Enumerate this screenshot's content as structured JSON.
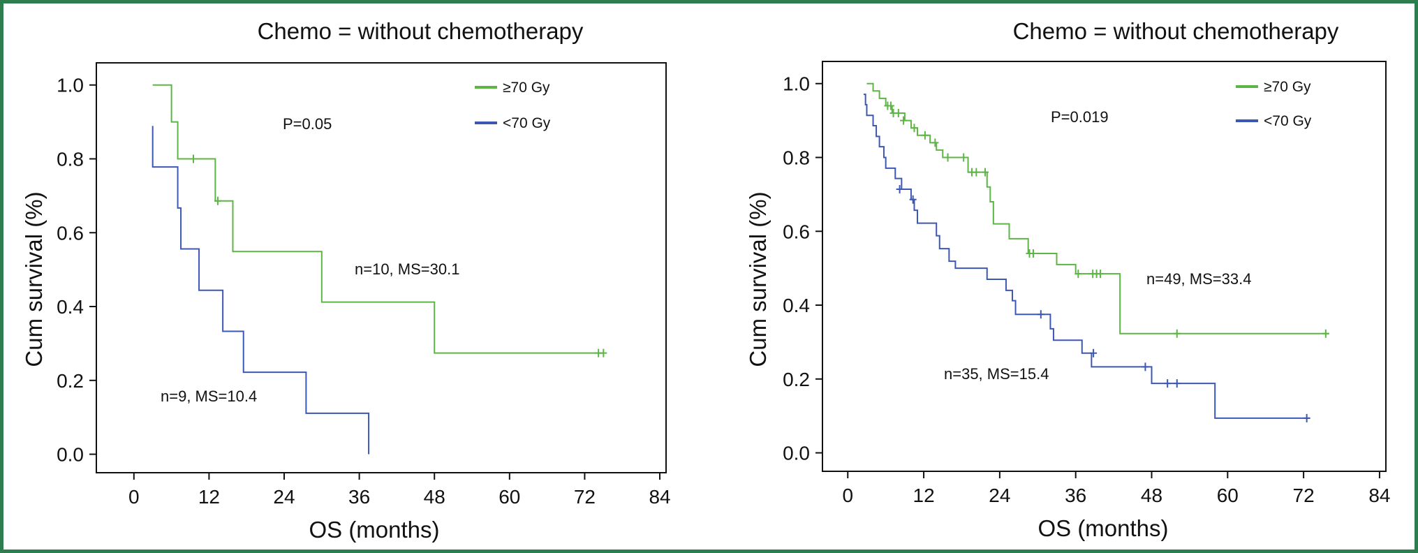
{
  "colors": {
    "frame": "#2e7d4f",
    "high_dose": "#5cb544",
    "low_dose": "#3d57b5"
  },
  "chart_data": [
    {
      "type": "line",
      "subtype": "kaplan-meier step",
      "title": "Chemo = without chemotherapy",
      "xlabel": "OS (months)",
      "ylabel": "Cum survival (%)",
      "xlim": [
        -6,
        85
      ],
      "ylim": [
        -0.05,
        1.06
      ],
      "xticks": [
        0,
        12,
        24,
        36,
        48,
        60,
        72,
        84
      ],
      "yticks": [
        "0.0",
        "0.2",
        "0.4",
        "0.6",
        "0.8",
        "1.0"
      ],
      "grid": false,
      "legend_position": "top-right",
      "pvalue": "P=0.05",
      "series": [
        {
          "name": "≥70 Gy",
          "label": "n=10, MS=30.1",
          "steps": [
            [
              3,
              1.0
            ],
            [
              6,
              0.9
            ],
            [
              7,
              0.8
            ],
            [
              13,
              0.686
            ],
            [
              15.8,
              0.549
            ],
            [
              30,
              0.412
            ],
            [
              48,
              0.274
            ],
            [
              75,
              0.274
            ]
          ],
          "censors": [
            [
              9.5,
              0.8
            ],
            [
              13.4,
              0.686
            ],
            [
              74.2,
              0.274
            ],
            [
              75,
              0.274
            ]
          ]
        },
        {
          "name": "<70 Gy",
          "label": "n=9, MS=10.4",
          "steps": [
            [
              3,
              0.889
            ],
            [
              3,
              0.778
            ],
            [
              7,
              0.667
            ],
            [
              7.5,
              0.556
            ],
            [
              10.4,
              0.444
            ],
            [
              14.2,
              0.333
            ],
            [
              17.5,
              0.222
            ],
            [
              27.5,
              0.111
            ],
            [
              37.5,
              0.0
            ]
          ],
          "censors": []
        }
      ]
    },
    {
      "type": "line",
      "subtype": "kaplan-meier step",
      "title": "Chemo = without chemotherapy",
      "xlabel": "OS (months)",
      "ylabel": "Cum survival (%)",
      "xlim": [
        -4,
        85
      ],
      "ylim": [
        -0.05,
        1.06
      ],
      "xticks": [
        0,
        12,
        24,
        36,
        48,
        60,
        72,
        84
      ],
      "yticks": [
        "0.0",
        "0.2",
        "0.4",
        "0.6",
        "0.8",
        "1.0"
      ],
      "grid": false,
      "legend_position": "top-right",
      "pvalue": "P=0.019",
      "series": [
        {
          "name": "≥70 Gy",
          "label": "n=49, MS=33.4",
          "steps": [
            [
              3,
              1.0
            ],
            [
              4,
              0.98
            ],
            [
              5,
              0.96
            ],
            [
              6,
              0.94
            ],
            [
              7,
              0.92
            ],
            [
              9,
              0.9
            ],
            [
              10,
              0.88
            ],
            [
              11,
              0.86
            ],
            [
              13,
              0.84
            ],
            [
              14,
              0.82
            ],
            [
              15,
              0.8
            ],
            [
              19,
              0.76
            ],
            [
              22,
              0.72
            ],
            [
              22.5,
              0.68
            ],
            [
              23,
              0.62
            ],
            [
              25.5,
              0.58
            ],
            [
              28.5,
              0.54
            ],
            [
              33,
              0.51
            ],
            [
              36,
              0.485
            ],
            [
              43,
              0.323
            ],
            [
              76,
              0.323
            ]
          ],
          "censors": [
            [
              6.3,
              0.94
            ],
            [
              6.8,
              0.94
            ],
            [
              7.2,
              0.92
            ],
            [
              8,
              0.92
            ],
            [
              8.8,
              0.9
            ],
            [
              10.5,
              0.88
            ],
            [
              12.2,
              0.86
            ],
            [
              13.8,
              0.84
            ],
            [
              15.8,
              0.8
            ],
            [
              18.3,
              0.8
            ],
            [
              19.6,
              0.76
            ],
            [
              20.3,
              0.76
            ],
            [
              21.7,
              0.76
            ],
            [
              28.7,
              0.54
            ],
            [
              29.3,
              0.54
            ],
            [
              36.4,
              0.485
            ],
            [
              38.7,
              0.485
            ],
            [
              39.3,
              0.485
            ],
            [
              39.9,
              0.485
            ],
            [
              52,
              0.323
            ],
            [
              75.5,
              0.323
            ]
          ]
        },
        {
          "name": "<70 Gy",
          "label": "n=35, MS=15.4",
          "steps": [
            [
              2.5,
              0.971
            ],
            [
              2.8,
              0.943
            ],
            [
              3,
              0.914
            ],
            [
              4,
              0.886
            ],
            [
              4.5,
              0.857
            ],
            [
              5,
              0.829
            ],
            [
              5.7,
              0.8
            ],
            [
              6,
              0.771
            ],
            [
              7.5,
              0.743
            ],
            [
              8.5,
              0.714
            ],
            [
              10,
              0.686
            ],
            [
              10.5,
              0.657
            ],
            [
              11,
              0.622
            ],
            [
              14,
              0.588
            ],
            [
              14.5,
              0.553
            ],
            [
              16,
              0.519
            ],
            [
              17,
              0.5
            ],
            [
              22,
              0.47
            ],
            [
              25,
              0.44
            ],
            [
              26,
              0.412
            ],
            [
              26.5,
              0.375
            ],
            [
              32,
              0.336
            ],
            [
              32.5,
              0.305
            ],
            [
              37,
              0.27
            ],
            [
              38.5,
              0.233
            ],
            [
              48,
              0.188
            ],
            [
              58,
              0.094
            ],
            [
              73,
              0.094
            ]
          ],
          "censors": [
            [
              8.2,
              0.714
            ],
            [
              10.3,
              0.686
            ],
            [
              30.5,
              0.375
            ],
            [
              38.8,
              0.27
            ],
            [
              47,
              0.233
            ],
            [
              50.5,
              0.188
            ],
            [
              52,
              0.188
            ],
            [
              72.5,
              0.094
            ]
          ]
        }
      ]
    }
  ]
}
